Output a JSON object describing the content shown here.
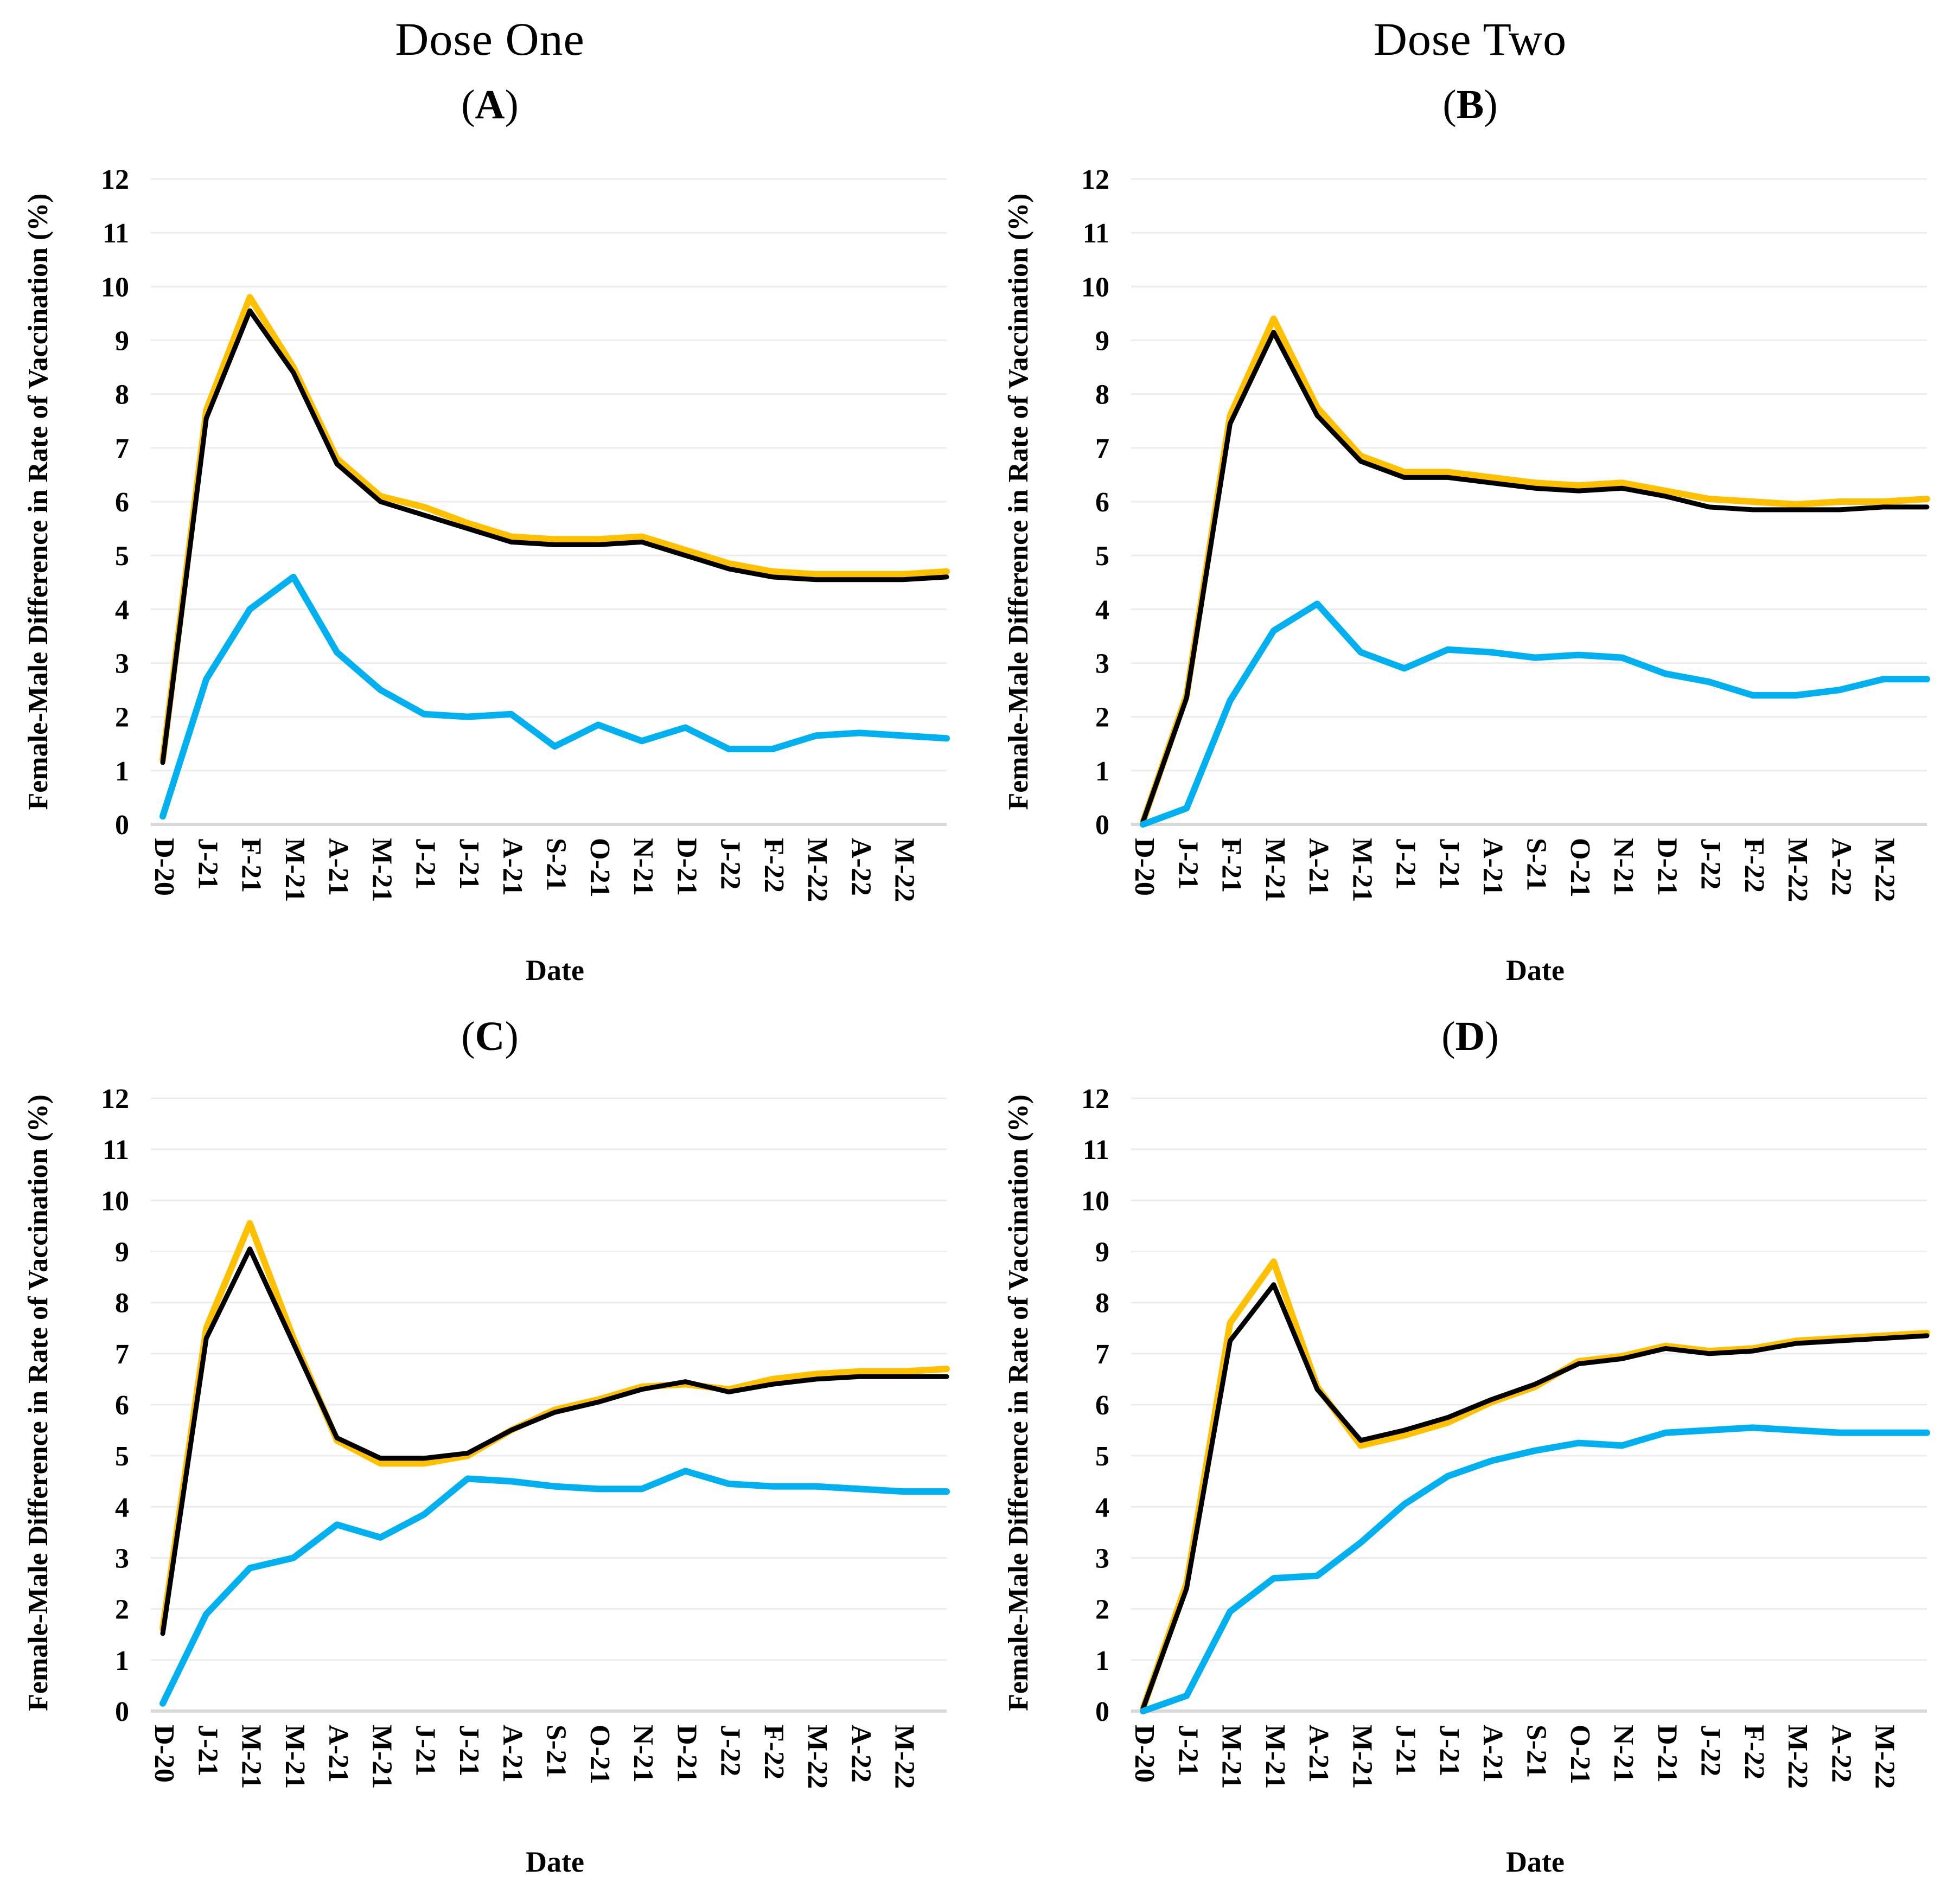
{
  "figure": {
    "column_titles": [
      "Dose One",
      "Dose Two"
    ],
    "paren_open": "(",
    "paren_close": ")",
    "y_ticks": [
      0,
      1,
      2,
      3,
      4,
      5,
      6,
      7,
      8,
      9,
      10,
      11,
      12
    ],
    "colors": {
      "series_yellow": "#FFC000",
      "series_black": "#000000",
      "series_blue": "#00B0F0",
      "gridline": "#ECECEC",
      "axis_line": "#D8D8D8",
      "text": "#000000"
    }
  },
  "chart_data": [
    {
      "id": "A",
      "letter": "A",
      "column_title": "Dose One",
      "type": "line",
      "xlabel": "Date",
      "ylabel": "Female-Male Difference in Rate of Vaccination (%)",
      "ylim": [
        0,
        12
      ],
      "grid": "horizontal",
      "legend": "none",
      "x_labels": [
        "D-20",
        "J-21",
        "F-21",
        "M-21",
        "A-21",
        "M-21",
        "J-21",
        "J-21",
        "A-21",
        "S-21",
        "O-21",
        "N-21",
        "D-21",
        "J-22",
        "F-22",
        "M-22",
        "A-22",
        "M-22"
      ],
      "x_note": "19th point is an unlabeled trailing point at the right edge",
      "series": [
        {
          "name": "yellow",
          "color": "#FFC000",
          "values": [
            1.2,
            7.7,
            9.8,
            8.5,
            6.8,
            6.1,
            5.9,
            5.6,
            5.35,
            5.3,
            5.3,
            5.35,
            5.1,
            4.85,
            4.7,
            4.65,
            4.65,
            4.65,
            4.7
          ]
        },
        {
          "name": "black",
          "color": "#000000",
          "values": [
            1.15,
            7.55,
            9.55,
            8.4,
            6.7,
            6.0,
            5.75,
            5.5,
            5.25,
            5.2,
            5.2,
            5.25,
            5.0,
            4.75,
            4.6,
            4.55,
            4.55,
            4.55,
            4.6
          ]
        },
        {
          "name": "blue",
          "color": "#00B0F0",
          "values": [
            0.15,
            2.7,
            4.0,
            4.6,
            3.2,
            2.5,
            2.05,
            2.0,
            2.05,
            1.45,
            1.85,
            1.55,
            1.8,
            1.4,
            1.4,
            1.65,
            1.7,
            1.65,
            1.6
          ]
        }
      ]
    },
    {
      "id": "B",
      "letter": "B",
      "column_title": "Dose Two",
      "type": "line",
      "xlabel": "Date",
      "ylabel": "Female-Male Difference in Rate of Vaccination (%)",
      "ylim": [
        0,
        12
      ],
      "grid": "horizontal",
      "legend": "none",
      "x_labels": [
        "D-20",
        "J-21",
        "F-21",
        "M-21",
        "A-21",
        "M-21",
        "J-21",
        "J-21",
        "A-21",
        "S-21",
        "O-21",
        "N-21",
        "D-21",
        "J-22",
        "F-22",
        "M-22",
        "A-22",
        "M-22"
      ],
      "x_note": "19th point is an unlabeled trailing point at the right edge",
      "series": [
        {
          "name": "yellow",
          "color": "#FFC000",
          "values": [
            0.05,
            2.4,
            7.6,
            9.4,
            7.75,
            6.85,
            6.55,
            6.55,
            6.45,
            6.35,
            6.3,
            6.35,
            6.2,
            6.05,
            6.0,
            5.95,
            6.0,
            6.0,
            6.05
          ]
        },
        {
          "name": "black",
          "color": "#000000",
          "values": [
            0.05,
            2.35,
            7.45,
            9.15,
            7.6,
            6.75,
            6.45,
            6.45,
            6.35,
            6.25,
            6.2,
            6.25,
            6.1,
            5.9,
            5.85,
            5.85,
            5.85,
            5.9,
            5.9
          ]
        },
        {
          "name": "blue",
          "color": "#00B0F0",
          "values": [
            0.0,
            0.3,
            2.3,
            3.6,
            4.1,
            3.2,
            2.9,
            3.25,
            3.2,
            3.1,
            3.15,
            3.1,
            2.8,
            2.65,
            2.4,
            2.4,
            2.5,
            2.7,
            2.7
          ]
        }
      ]
    },
    {
      "id": "C",
      "letter": "C",
      "column_title": "",
      "type": "line",
      "xlabel": "Date",
      "ylabel": "Female-Male Difference in Rate of Vaccination (%)",
      "ylim": [
        0,
        12
      ],
      "grid": "horizontal",
      "legend": "none",
      "x_labels": [
        "D-20",
        "J-21",
        "M-21",
        "M-21",
        "A-21",
        "M-21",
        "J-21",
        "J-21",
        "A-21",
        "S-21",
        "O-21",
        "N-21",
        "D-21",
        "J-22",
        "F-22",
        "M-22",
        "A-22",
        "M-22"
      ],
      "x_note": "19th point is an unlabeled trailing point at the right edge",
      "series": [
        {
          "name": "yellow",
          "color": "#FFC000",
          "values": [
            1.62,
            7.5,
            9.55,
            7.3,
            5.3,
            4.85,
            4.85,
            5.0,
            5.5,
            5.9,
            6.1,
            6.35,
            6.4,
            6.3,
            6.5,
            6.6,
            6.65,
            6.65,
            6.7
          ]
        },
        {
          "name": "black",
          "color": "#000000",
          "values": [
            1.52,
            7.3,
            9.05,
            7.2,
            5.35,
            4.95,
            4.95,
            5.05,
            5.5,
            5.85,
            6.05,
            6.3,
            6.45,
            6.25,
            6.4,
            6.5,
            6.55,
            6.55,
            6.55
          ]
        },
        {
          "name": "blue",
          "color": "#00B0F0",
          "values": [
            0.15,
            1.9,
            2.8,
            3.0,
            3.65,
            3.4,
            3.85,
            4.55,
            4.5,
            4.4,
            4.35,
            4.35,
            4.7,
            4.45,
            4.4,
            4.4,
            4.35,
            4.3,
            4.3
          ]
        }
      ]
    },
    {
      "id": "D",
      "letter": "D",
      "column_title": "",
      "type": "line",
      "xlabel": "Date",
      "ylabel": "Female-Male Difference in Rate of Vaccination (%)",
      "ylim": [
        0,
        12
      ],
      "grid": "horizontal",
      "legend": "none",
      "x_labels": [
        "D-20",
        "J-21",
        "M-21",
        "M-21",
        "A-21",
        "M-21",
        "J-21",
        "J-21",
        "A-21",
        "S-21",
        "O-21",
        "N-21",
        "D-21",
        "J-22",
        "F-22",
        "M-22",
        "A-22",
        "M-22"
      ],
      "x_note": "19th point is an unlabeled trailing point at the right edge",
      "series": [
        {
          "name": "yellow",
          "color": "#FFC000",
          "values": [
            0.05,
            2.5,
            7.6,
            8.8,
            6.35,
            5.2,
            5.4,
            5.65,
            6.05,
            6.35,
            6.85,
            6.95,
            7.15,
            7.05,
            7.1,
            7.25,
            7.3,
            7.35,
            7.4
          ]
        },
        {
          "name": "black",
          "color": "#000000",
          "values": [
            0.05,
            2.4,
            7.25,
            8.35,
            6.3,
            5.3,
            5.5,
            5.75,
            6.1,
            6.4,
            6.8,
            6.9,
            7.1,
            7.0,
            7.05,
            7.2,
            7.25,
            7.3,
            7.35
          ]
        },
        {
          "name": "blue",
          "color": "#00B0F0",
          "values": [
            0.0,
            0.3,
            1.95,
            2.6,
            2.65,
            3.3,
            4.05,
            4.6,
            4.9,
            5.1,
            5.25,
            5.2,
            5.45,
            5.5,
            5.55,
            5.5,
            5.45,
            5.45,
            5.45
          ]
        }
      ]
    }
  ]
}
